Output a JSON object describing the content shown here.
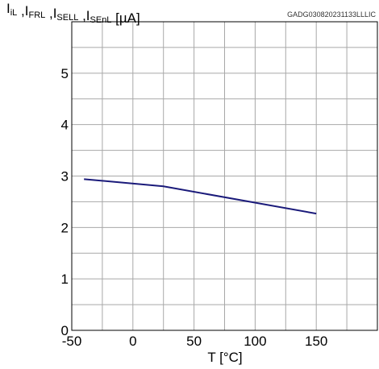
{
  "chart_data": {
    "type": "line",
    "ylabel_parts": [
      {
        "t": "I",
        "sub": "iL"
      },
      {
        "t": " ,I",
        "sub": "FRL"
      },
      {
        "t": " ,I",
        "sub": "SELL"
      },
      {
        "t": " ,I",
        "sub": "SEnL"
      },
      {
        "t": " [µA]",
        "sub": ""
      }
    ],
    "xlabel": "T [°C]",
    "code": "GADG030820231133LLLIC",
    "xlim": [
      -50,
      200
    ],
    "ylim": [
      0,
      6
    ],
    "xticks": [
      -50,
      0,
      50,
      100,
      150
    ],
    "yticks": [
      0,
      1,
      2,
      3,
      4,
      5
    ],
    "grid": true,
    "line_color": "#1a1a7a",
    "series": [
      {
        "x": [
          -40,
          25,
          150
        ],
        "y": [
          2.94,
          2.8,
          2.27
        ]
      }
    ]
  }
}
